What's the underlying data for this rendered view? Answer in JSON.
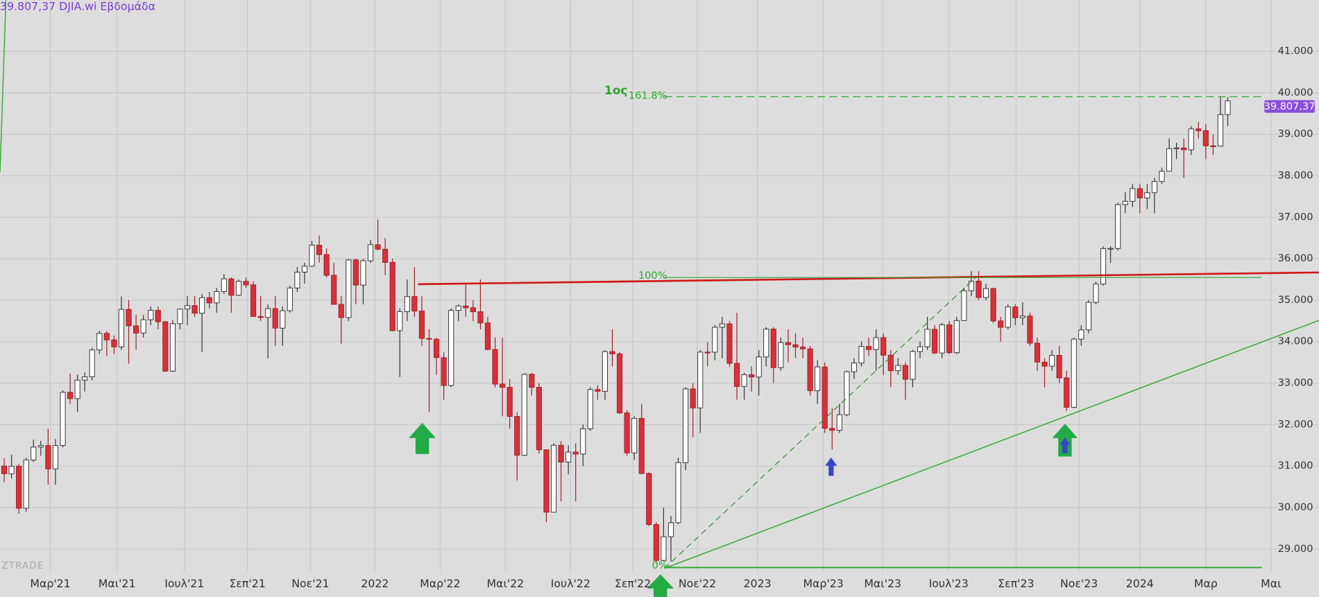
{
  "chart_data": {
    "type": "candlestick",
    "title": "39.807,37 DJIA.wi Εβδομάδα",
    "price_label": "39.807,37",
    "watermark": "ZTRADE",
    "annotations": {
      "fib_161": "161.8%",
      "fib_100": "100%",
      "fib_0": "0%",
      "wave": "1ος"
    },
    "up_color": "#ffffff",
    "down_color": "#d9303a",
    "grid": true,
    "xlim": [
      -0.57,
      179.45
    ],
    "xticks": [
      {
        "value": 6.3,
        "label": "Μαρ'21"
      },
      {
        "value": 15.4,
        "label": "Μαι'21"
      },
      {
        "value": 24.6,
        "label": "Ιουλ'21"
      },
      {
        "value": 33.2,
        "label": "Σεπ'21"
      },
      {
        "value": 41.8,
        "label": "Νοε'21"
      },
      {
        "value": 50.6,
        "label": "2022"
      },
      {
        "value": 59.5,
        "label": "Μαρ'22"
      },
      {
        "value": 68.4,
        "label": "Μαι'22"
      },
      {
        "value": 77.3,
        "label": "Ιουλ'22"
      },
      {
        "value": 85.8,
        "label": "Σεπ'22"
      },
      {
        "value": 94.6,
        "label": "Νοε'22"
      },
      {
        "value": 102.8,
        "label": "2023"
      },
      {
        "value": 111.8,
        "label": "Μαρ'23"
      },
      {
        "value": 119.9,
        "label": "Μαι'23"
      },
      {
        "value": 128.9,
        "label": "Ιουλ'23"
      },
      {
        "value": 138.1,
        "label": "Σεπ'23"
      },
      {
        "value": 146.7,
        "label": "Νοε'23"
      },
      {
        "value": 155.0,
        "label": "2024"
      },
      {
        "value": 164.0,
        "label": "Μαρ"
      },
      {
        "value": 172.9,
        "label": "Μαι"
      }
    ],
    "ylim": [
      28453,
      42237
    ],
    "yticks": [
      {
        "value": 29000,
        "label": "29.000"
      },
      {
        "value": 30000,
        "label": "30.000"
      },
      {
        "value": 31000,
        "label": "31.000"
      },
      {
        "value": 32000,
        "label": "32.000"
      },
      {
        "value": 33000,
        "label": "33.000"
      },
      {
        "value": 34000,
        "label": "34.000"
      },
      {
        "value": 35000,
        "label": "35.000"
      },
      {
        "value": 36000,
        "label": "36.000"
      },
      {
        "value": 37000,
        "label": "37.000"
      },
      {
        "value": 38000,
        "label": "38.000"
      },
      {
        "value": 39000,
        "label": "39.000"
      },
      {
        "value": 40000,
        "label": "40.000"
      },
      {
        "value": 41000,
        "label": "41.000"
      }
    ],
    "open": [
      31000,
      30814,
      30997,
      29983,
      31148,
      31458,
      31494,
      30932,
      31496,
      32779,
      32628,
      33073,
      33153,
      33801,
      34200,
      34043,
      33875,
      34778,
      34382,
      34208,
      34529,
      34756,
      34480,
      33290,
      34433,
      34786,
      34870,
      34687,
      35061,
      34935,
      35208,
      35515,
      35120,
      35455,
      35369,
      34607,
      34584,
      34798,
      34326,
      34746,
      35295,
      35677,
      35820,
      36327,
      36100,
      35601,
      34899,
      34580,
      35971,
      35365,
      35951,
      36338,
      36231,
      35912,
      34265,
      34725,
      35089,
      34738,
      34079,
      34059,
      33615,
      32944,
      34755,
      34861,
      34818,
      34721,
      34451,
      33811,
      32977,
      32899,
      32197,
      31262,
      33213,
      32900,
      31393,
      29888,
      31501,
      31097,
      31338,
      31289,
      31899,
      32845,
      32803,
      33761,
      33707,
      32283,
      31318,
      32151,
      30822,
      29590,
      28726,
      29297,
      29635,
      31083,
      32861,
      32403,
      33748,
      33746,
      34347,
      34430,
      33477,
      32920,
      33204,
      33147,
      33631,
      34303,
      33375,
      33978,
      33926,
      33869,
      33827,
      32817,
      33391,
      31910,
      31862,
      32238,
      33274,
      33485,
      33886,
      33809,
      34098,
      33674,
      33300,
      33427,
      33093,
      33763,
      33877,
      34299,
      33727,
      34408,
      33735,
      34509,
      35228,
      35460,
      35066,
      35281,
      34500,
      34347,
      34838,
      34577,
      34618,
      33964,
      33508,
      33408,
      33670,
      33127,
      32418,
      34061,
      34283,
      34947,
      35390,
      36246,
      36248,
      37306,
      37386,
      37690,
      37466,
      37593,
      37864,
      38109,
      38654,
      38672,
      38628,
      39131,
      39087,
      38723,
      38715,
      39476
    ],
    "high": [
      31190,
      31270,
      31050,
      31200,
      31640,
      31610,
      31900,
      31650,
      32830,
      33230,
      33200,
      33260,
      33850,
      34260,
      34250,
      34150,
      35090,
      35000,
      34650,
      34640,
      34850,
      34850,
      34500,
      34520,
      34800,
      35100,
      35100,
      35150,
      35200,
      35300,
      35630,
      35550,
      35500,
      35550,
      35450,
      35100,
      34900,
      35100,
      34850,
      35350,
      35800,
      35900,
      36430,
      36560,
      36250,
      35900,
      35100,
      35990,
      36000,
      36000,
      36450,
      36950,
      36500,
      36000,
      34800,
      35500,
      35800,
      35100,
      34300,
      34100,
      33750,
      34800,
      34900,
      35400,
      35000,
      35500,
      34600,
      34100,
      34100,
      33100,
      32300,
      33240,
      33250,
      33000,
      31400,
      31550,
      31600,
      31500,
      31550,
      32000,
      32900,
      32950,
      33800,
      34300,
      33750,
      32350,
      32200,
      32500,
      30850,
      29650,
      30000,
      29800,
      31200,
      32900,
      33000,
      33800,
      33990,
      34400,
      34600,
      34500,
      34700,
      33250,
      33400,
      33800,
      34350,
      34350,
      34100,
      34300,
      34200,
      34100,
      33900,
      33550,
      33500,
      32400,
      32500,
      33300,
      33600,
      34000,
      34100,
      34300,
      34200,
      33800,
      33600,
      33500,
      33800,
      34000,
      34600,
      34400,
      34450,
      34500,
      34600,
      35300,
      35700,
      35700,
      35400,
      35300,
      34600,
      34900,
      34900,
      34950,
      34700,
      34100,
      33600,
      33800,
      33900,
      33300,
      34100,
      34400,
      35000,
      35450,
      36300,
      36300,
      37350,
      37600,
      37800,
      37800,
      37800,
      37950,
      38200,
      38900,
      38800,
      38900,
      39200,
      39300,
      39250,
      39000,
      39900,
      39900
    ],
    "low": [
      30610,
      30700,
      29850,
      29900,
      31100,
      31250,
      30550,
      30550,
      31450,
      32500,
      32300,
      32800,
      33070,
      33700,
      33650,
      33700,
      33800,
      33470,
      33800,
      34100,
      34400,
      34300,
      33270,
      33270,
      34300,
      34400,
      34600,
      33750,
      34800,
      34700,
      35150,
      34700,
      35100,
      35300,
      34600,
      34500,
      33600,
      33900,
      33900,
      34700,
      35200,
      35400,
      35800,
      35900,
      35550,
      34900,
      33950,
      34500,
      34900,
      34900,
      35900,
      36200,
      35600,
      34250,
      33150,
      34500,
      34600,
      33900,
      32300,
      33200,
      32600,
      32900,
      34500,
      34600,
      34500,
      34300,
      33800,
      32900,
      32200,
      31900,
      30650,
      31250,
      32700,
      31300,
      29650,
      29900,
      30150,
      30800,
      30150,
      31000,
      31850,
      32600,
      32600,
      33400,
      32250,
      31250,
      31150,
      30800,
      29550,
      28660,
      28700,
      28700,
      29600,
      30900,
      31700,
      31800,
      33400,
      33550,
      33600,
      33400,
      32600,
      32600,
      32800,
      32700,
      33400,
      33000,
      33300,
      33500,
      33600,
      33600,
      32700,
      32500,
      31800,
      31400,
      31800,
      32200,
      33100,
      33400,
      33650,
      33300,
      33200,
      32900,
      33200,
      32600,
      32900,
      33600,
      33800,
      33700,
      33600,
      33700,
      33700,
      34500,
      35100,
      35000,
      35000,
      34450,
      34000,
      34300,
      34400,
      34400,
      33900,
      33300,
      32900,
      33300,
      33000,
      32330,
      32400,
      33900,
      34200,
      34900,
      35350,
      35900,
      36200,
      37100,
      37250,
      37100,
      37200,
      37100,
      37800,
      38100,
      38400,
      37950,
      38500,
      38900,
      38400,
      38500,
      38700,
      39200
    ],
    "close": [
      30814,
      30997,
      29983,
      31148,
      31458,
      31494,
      30932,
      31496,
      32779,
      32628,
      33073,
      33153,
      33801,
      34200,
      34043,
      33875,
      34778,
      34382,
      34208,
      34529,
      34756,
      34480,
      33290,
      34433,
      34786,
      34870,
      34687,
      35061,
      34935,
      35208,
      35515,
      35120,
      35455,
      35369,
      34607,
      34584,
      34798,
      34326,
      34746,
      35295,
      35677,
      35820,
      36327,
      36100,
      35601,
      34899,
      34580,
      35971,
      35365,
      35951,
      36338,
      36231,
      35912,
      34265,
      34725,
      35089,
      34738,
      34079,
      34059,
      33615,
      32944,
      34755,
      34861,
      34818,
      34721,
      34451,
      33811,
      32977,
      32899,
      32197,
      31262,
      33213,
      32900,
      31393,
      29888,
      31501,
      31097,
      31338,
      31289,
      31899,
      32845,
      32803,
      33761,
      33707,
      32283,
      31318,
      32151,
      30822,
      29590,
      28726,
      29297,
      29635,
      31083,
      32861,
      32403,
      33748,
      33746,
      34347,
      34430,
      33477,
      32920,
      33204,
      33147,
      33631,
      34303,
      33375,
      33978,
      33926,
      33869,
      33827,
      32817,
      33391,
      31910,
      31862,
      32238,
      33274,
      33485,
      33886,
      33809,
      34098,
      33674,
      33300,
      33427,
      33093,
      33763,
      33877,
      34299,
      33727,
      34408,
      33735,
      34509,
      35228,
      35460,
      35066,
      35281,
      34500,
      34347,
      34838,
      34577,
      34618,
      33964,
      33508,
      33408,
      33670,
      33127,
      32418,
      34061,
      34283,
      34947,
      35390,
      36246,
      36248,
      37306,
      37386,
      37690,
      37466,
      37593,
      37864,
      38109,
      38654,
      38672,
      38628,
      39131,
      39087,
      38723,
      38715,
      39476,
      39807
    ]
  }
}
